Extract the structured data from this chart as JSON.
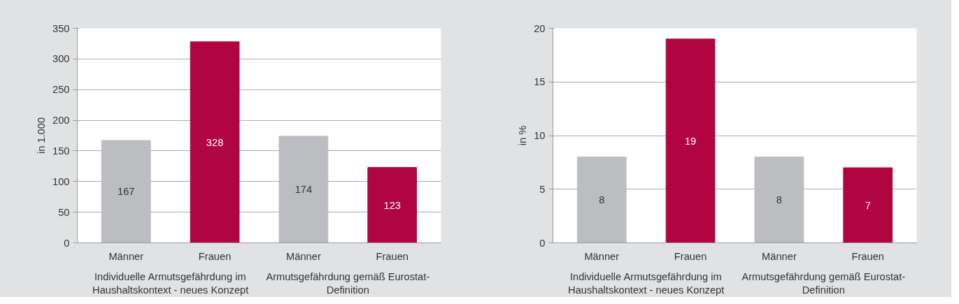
{
  "chart_data": [
    {
      "type": "bar",
      "ylabel": "in 1.000",
      "categories": [
        "Männer",
        "Frauen",
        "Männer",
        "Frauen"
      ],
      "values": [
        167,
        328,
        174,
        123
      ],
      "colors": [
        "#bcbdc1",
        "#b10541",
        "#bcbdc1",
        "#b10541"
      ],
      "ylim": [
        0,
        350
      ],
      "yticks": [
        0,
        50,
        100,
        150,
        200,
        250,
        300,
        350
      ],
      "grid": "y",
      "data_labels": true,
      "annotations": [
        "Individuelle Armutsgefährdung im Haushaltskontext - neues Konzept",
        "Armutsgefährdung gemäß Eurostat-Definition"
      ]
    },
    {
      "type": "bar",
      "ylabel": "in %",
      "categories": [
        "Männer",
        "Frauen",
        "Männer",
        "Frauen"
      ],
      "values": [
        8,
        19,
        8,
        7
      ],
      "colors": [
        "#bcbdc1",
        "#b10541",
        "#bcbdc1",
        "#b10541"
      ],
      "ylim": [
        0,
        20
      ],
      "yticks": [
        0,
        5,
        10,
        15,
        20
      ],
      "grid": "y",
      "data_labels": true,
      "annotations": [
        "Individuelle Armutsgefährdung im Haushaltskontext - neues Konzept",
        "Armutsgefährdung gemäß Eurostat-Definition"
      ]
    }
  ]
}
